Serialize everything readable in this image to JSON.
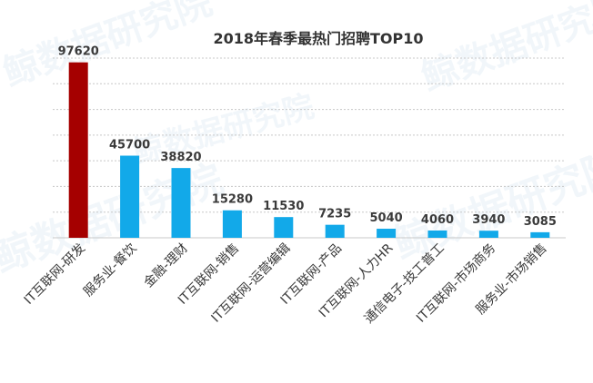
{
  "chart_data": {
    "type": "bar",
    "title": "2018年春季最热门招聘TOP10",
    "xlabel": "",
    "ylabel": "",
    "categories": [
      "IT互联网-研发",
      "服务业-餐饮",
      "金融-理财",
      "IT互联网-销售",
      "IT互联网-运营编辑",
      "IT互联网-产品",
      "IT互联网-人力HR",
      "通信电子-技工普工",
      "IT互联网-市场商务",
      "服务业-市场销售"
    ],
    "values": [
      97620,
      45700,
      38820,
      15280,
      11530,
      7235,
      5040,
      4060,
      3940,
      3085
    ],
    "value_labels": [
      "97620",
      "45700",
      "38820",
      "15280",
      "11530",
      "7235",
      "5040",
      "4060",
      "3940",
      "3085"
    ],
    "ylim": [
      0,
      100000
    ],
    "grid": true,
    "gridline_count": 8,
    "colors": {
      "highlight": "#a50000",
      "bar": "#12a9e9",
      "grid": "#c8c8c8",
      "text": "#3a3a3a",
      "title": "#333333"
    },
    "watermark": "鲸数据研究院"
  }
}
